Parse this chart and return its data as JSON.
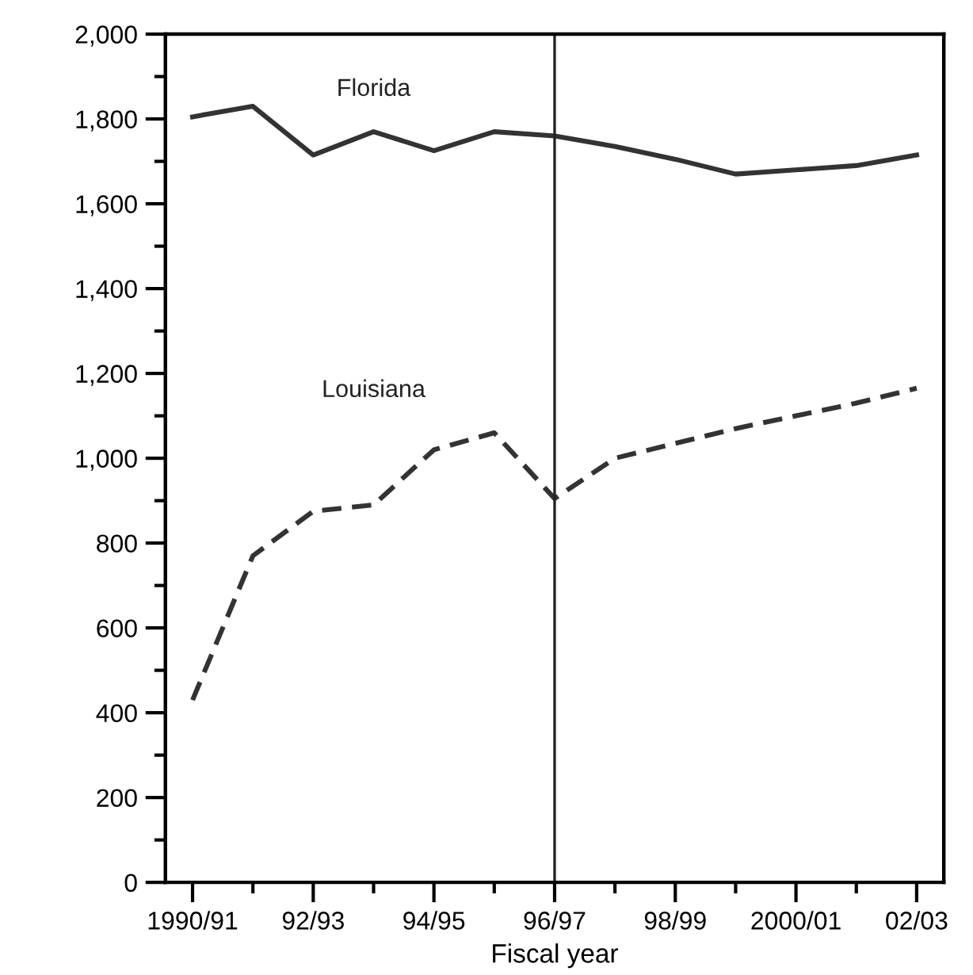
{
  "chart_data": {
    "type": "line",
    "xlabel": "Fiscal year",
    "categories": [
      "1990/91",
      null,
      "92/93",
      null,
      "94/95",
      null,
      "96/97",
      null,
      "98/99",
      null,
      "2000/01",
      null,
      "02/03"
    ],
    "series": [
      {
        "name": "Florida",
        "color": "#333333",
        "line_style": "solid",
        "values": [
          1805,
          1830,
          1715,
          1770,
          1725,
          1770,
          1760,
          1735,
          1705,
          1670,
          1680,
          1690,
          1715
        ]
      },
      {
        "name": "Louisiana",
        "color": "#333333",
        "line_style": "dashed",
        "values": [
          430,
          770,
          875,
          890,
          1020,
          1060,
          905,
          1000,
          1035,
          1070,
          1100,
          1130,
          1165
        ]
      }
    ],
    "ylim": [
      0,
      2000
    ],
    "yticks": [
      {
        "value": 0,
        "label": "0"
      },
      {
        "value": 100,
        "label": null
      },
      {
        "value": 200,
        "label": "200"
      },
      {
        "value": 300,
        "label": null
      },
      {
        "value": 400,
        "label": "400"
      },
      {
        "value": 500,
        "label": null
      },
      {
        "value": 600,
        "label": "600"
      },
      {
        "value": 700,
        "label": null
      },
      {
        "value": 800,
        "label": "800"
      },
      {
        "value": 900,
        "label": null
      },
      {
        "value": 1000,
        "label": "1,000"
      },
      {
        "value": 1100,
        "label": null
      },
      {
        "value": 1200,
        "label": "1,200"
      },
      {
        "value": 1300,
        "label": null
      },
      {
        "value": 1400,
        "label": "1,400"
      },
      {
        "value": 1500,
        "label": null
      },
      {
        "value": 1600,
        "label": "1,600"
      },
      {
        "value": 1700,
        "label": null
      },
      {
        "value": 1800,
        "label": "1,800"
      },
      {
        "value": 1900,
        "label": null
      },
      {
        "value": 2000,
        "label": "2,000"
      }
    ],
    "ref_lines": [
      {
        "axis": "x",
        "value": "96/97",
        "color": "#222222",
        "line_style": "solid"
      }
    ],
    "grid": false,
    "legend": false
  }
}
